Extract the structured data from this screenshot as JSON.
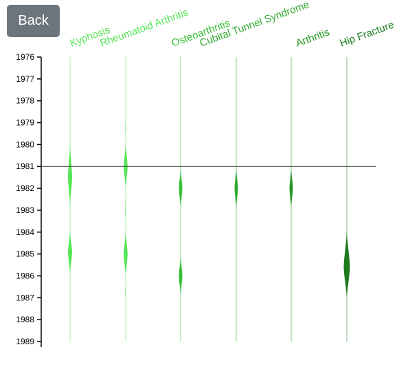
{
  "back_label": "Back",
  "chart_data": {
    "type": "violin",
    "title": "",
    "xlabel": "",
    "ylabel": "",
    "ylim": [
      1976,
      1989
    ],
    "y_ticks": [
      1976,
      1977,
      1978,
      1979,
      1980,
      1981,
      1982,
      1983,
      1984,
      1985,
      1986,
      1987,
      1988,
      1989
    ],
    "reference_line_year": 1981,
    "series": [
      {
        "name": "Kyphosis",
        "color": "#55e655",
        "segments": [
          {
            "from": 1980.0,
            "to": 1982.8,
            "peak": 1981.5,
            "half_width": 3
          },
          {
            "from": 1984.0,
            "to": 1985.9,
            "peak": 1984.9,
            "half_width": 3
          }
        ]
      },
      {
        "name": "Rheumatoid Arthritis",
        "color": "#55e655",
        "segments": [
          {
            "from": 1979.0,
            "to": 1979.5,
            "peak": 1979.25,
            "half_width": 0.5
          },
          {
            "from": 1980.0,
            "to": 1982.0,
            "peak": 1981.0,
            "half_width": 2.8
          },
          {
            "from": 1982.5,
            "to": 1983.5,
            "peak": 1983.0,
            "half_width": 0.5
          },
          {
            "from": 1984.0,
            "to": 1986.0,
            "peak": 1985.0,
            "half_width": 2.8
          },
          {
            "from": 1986.5,
            "to": 1987.0,
            "peak": 1986.75,
            "half_width": 0.5
          }
        ]
      },
      {
        "name": "Osteoarthritis",
        "color": "#38c038",
        "segments": [
          {
            "from": 1981.1,
            "to": 1982.9,
            "peak": 1982.0,
            "half_width": 2.5
          },
          {
            "from": 1985.1,
            "to": 1986.9,
            "peak": 1986.0,
            "half_width": 2.5
          }
        ]
      },
      {
        "name": "Cubital Tunnel Syndrome",
        "color": "#2ea82e",
        "segments": [
          {
            "from": 1981.1,
            "to": 1982.9,
            "peak": 1982.0,
            "half_width": 2.5
          }
        ]
      },
      {
        "name": "Arthritis",
        "color": "#269626",
        "segments": [
          {
            "from": 1981.1,
            "to": 1982.9,
            "peak": 1982.0,
            "half_width": 2.5
          }
        ]
      },
      {
        "name": "Hip Fracture",
        "color": "#1d7a1d",
        "segments": [
          {
            "from": 1984.0,
            "to": 1987.0,
            "peak": 1985.6,
            "half_width": 4.5
          }
        ]
      }
    ]
  }
}
